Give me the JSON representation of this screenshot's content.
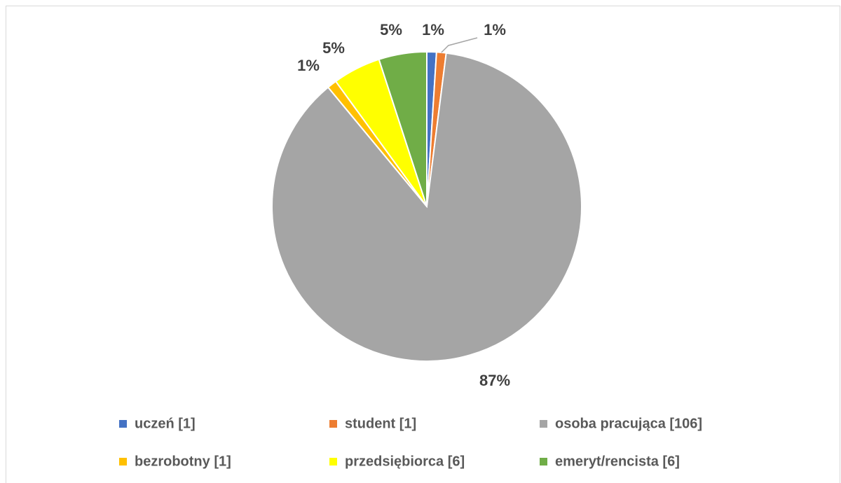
{
  "chart_data": {
    "type": "pie",
    "categories": [
      "uczeń [1]",
      "student [1]",
      "osoba pracująca [106]",
      "bezrobotny [1]",
      "przedsiębiorca [6]",
      "emeryt/rencista [6]"
    ],
    "values": [
      1,
      1,
      87,
      1,
      5,
      5
    ],
    "value_labels": [
      "1%",
      "1%",
      "87%",
      "1%",
      "5%",
      "5%"
    ],
    "colors": [
      "#4472c4",
      "#ed7d31",
      "#a5a5a5",
      "#ffc000",
      "#ffff00",
      "#70ad47"
    ]
  }
}
